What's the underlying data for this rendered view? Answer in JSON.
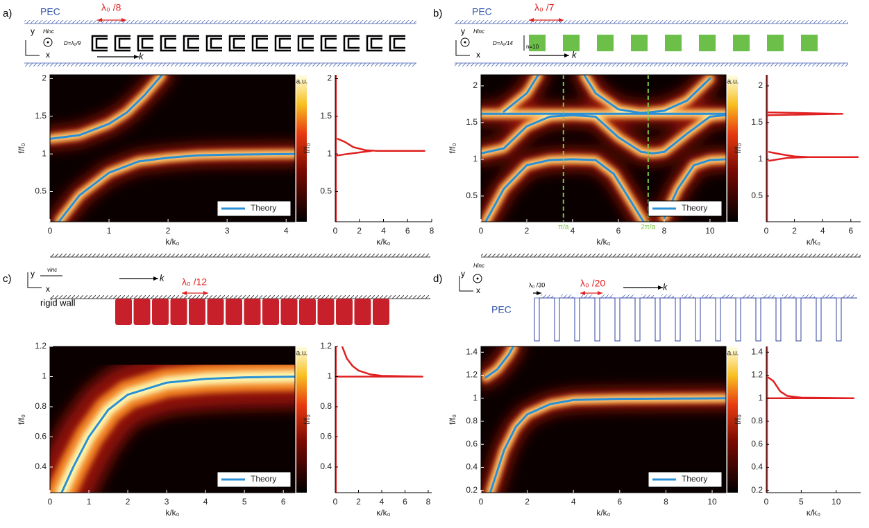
{
  "chart_data": [
    {
      "type": "line",
      "heatmap": true,
      "colorbar_label": "a.u.",
      "legend": "lower right",
      "xlabel": "k/k₀",
      "ylabel": "f/f₀",
      "xlim": [
        0,
        4.15
      ],
      "ylim": [
        0.1,
        2.05
      ],
      "xticks": [
        0,
        1,
        2,
        3,
        4
      ],
      "yticks": [
        0.5,
        1,
        1.5,
        2
      ],
      "annotations": [
        "a)",
        "PEC",
        "λ₀ /8",
        "Hinc",
        "D=λ₀/9",
        "y",
        "x",
        "k"
      ],
      "series": [
        {
          "name": "Theory",
          "color": "#2a8fd4",
          "x": [
            0.15,
            0.5,
            1,
            1.5,
            2,
            2.5,
            3,
            4.15,
            null,
            0,
            0.5,
            1,
            1.3,
            1.6,
            1.9
          ],
          "values": [
            0.1,
            0.45,
            0.75,
            0.9,
            0.95,
            0.98,
            0.99,
            1.0,
            null,
            1.2,
            1.25,
            1.4,
            1.55,
            1.78,
            2.05
          ]
        }
      ]
    },
    {
      "type": "line",
      "xlabel": "κ/k₀",
      "ylabel": "f/f₀",
      "xlim": [
        0,
        8
      ],
      "ylim": [
        0.1,
        2.05
      ],
      "xticks": [
        0,
        2,
        4,
        6,
        8
      ],
      "yticks": [
        0.5,
        1,
        1.5,
        2
      ],
      "series": [
        {
          "color": "#e02020",
          "x": [
            0.05,
            0.05,
            null,
            0.2,
            0.8,
            1.5,
            2.5,
            3.5,
            5,
            7.4,
            null,
            0.2,
            1,
            2,
            3
          ],
          "values": [
            0.1,
            2.05,
            null,
            1.2,
            1.16,
            1.09,
            1.05,
            1.04,
            1.04,
            1.04,
            null,
            0.98,
            1.0,
            1.02,
            1.04
          ]
        }
      ]
    },
    {
      "type": "line",
      "heatmap": true,
      "colorbar_label": "a.u.",
      "legend": "lower right",
      "xlabel": "k/k₀",
      "ylabel": "f/f₀",
      "xlim": [
        0,
        10.7
      ],
      "ylim": [
        0.15,
        2.15
      ],
      "xticks": [
        0,
        2,
        4,
        6,
        8,
        10
      ],
      "yticks": [
        0.5,
        1,
        1.5,
        2
      ],
      "vlines": [
        {
          "x": 3.6,
          "label": "π/a"
        },
        {
          "x": 7.3,
          "label": "2π/a"
        }
      ],
      "vline_color": "#7ac943",
      "annotations": [
        "b)",
        "PEC",
        "λ₀ /7",
        "Hinc",
        "D=λ₀/14",
        "n=10",
        "y",
        "x",
        "k"
      ],
      "series": [
        {
          "name": "Theory",
          "color": "#2a8fd4",
          "x": [
            0.2,
            1,
            2,
            3,
            4,
            5,
            5.8,
            6.6,
            7.1,
            null,
            8,
            8.6,
            9.3,
            10,
            10.7,
            null,
            0,
            1,
            2,
            3,
            4,
            5,
            6,
            7,
            7.5,
            8,
            9,
            10,
            10.7,
            null,
            0,
            10.7,
            null,
            1,
            2,
            2.5,
            null,
            4.5,
            5,
            6,
            7,
            8,
            9,
            10
          ],
          "values": [
            0.15,
            0.6,
            0.92,
            0.99,
            1.0,
            0.99,
            0.8,
            0.4,
            0.15,
            null,
            0.2,
            0.6,
            0.92,
            0.99,
            1.0,
            null,
            1.08,
            1.15,
            1.45,
            1.58,
            1.6,
            1.58,
            1.3,
            1.1,
            1.08,
            1.1,
            1.35,
            1.58,
            1.6,
            null,
            1.62,
            1.62,
            null,
            1.65,
            1.9,
            2.15,
            null,
            2.15,
            1.9,
            1.68,
            1.63,
            1.66,
            1.8,
            2.1
          ]
        }
      ]
    },
    {
      "type": "line",
      "xlabel": "κ/k₀",
      "ylabel": "f/f₀",
      "xlim": [
        0,
        6.7
      ],
      "ylim": [
        0.15,
        2.15
      ],
      "xticks": [
        0,
        2,
        4,
        6
      ],
      "yticks": [
        0.5,
        1,
        1.5,
        2
      ],
      "series": [
        {
          "color": "#e02020",
          "x": [
            0.05,
            0.05,
            null,
            0.1,
            5.4,
            null,
            0.1,
            5,
            null,
            0.2,
            1,
            2,
            3,
            6.5,
            null,
            0.2,
            1.5,
            3
          ],
          "values": [
            0.15,
            2.15,
            null,
            1.6,
            1.62,
            null,
            1.64,
            1.62,
            null,
            1.1,
            1.07,
            1.04,
            1.03,
            1.03,
            null,
            0.98,
            1.02,
            1.03
          ]
        }
      ]
    },
    {
      "type": "line",
      "heatmap": true,
      "wide_heat": true,
      "colorbar_label": "a.u.",
      "legend": "lower right",
      "xlabel": "k/k₀",
      "ylabel": "f/f₀",
      "xlim": [
        0,
        6.3
      ],
      "ylim": [
        0.23,
        1.2
      ],
      "xticks": [
        0,
        1,
        2,
        3,
        4,
        5,
        6
      ],
      "yticks": [
        0.4,
        0.6,
        0.8,
        1,
        1.2
      ],
      "annotations": [
        "c)",
        "vinc",
        "λ₀ /12",
        "rigid wall",
        "y",
        "x",
        "k"
      ],
      "series": [
        {
          "name": "Theory",
          "color": "#2a8fd4",
          "x": [
            0.3,
            0.6,
            1,
            1.5,
            2,
            3,
            4,
            5,
            6.3
          ],
          "values": [
            0.23,
            0.4,
            0.6,
            0.78,
            0.88,
            0.96,
            0.985,
            0.995,
            1.0
          ]
        }
      ]
    },
    {
      "type": "line",
      "xlabel": "κ/k₀",
      "ylabel": "f/f₀",
      "xlim": [
        0,
        8.3
      ],
      "ylim": [
        0.23,
        1.2
      ],
      "xticks": [
        0,
        2,
        4,
        6,
        8
      ],
      "yticks": [
        0.4,
        0.6,
        0.8,
        1,
        1.2
      ],
      "series": [
        {
          "color": "#e02020",
          "x": [
            0.05,
            0.05,
            null,
            0.6,
            1,
            1.5,
            2,
            3,
            4,
            7.5,
            null,
            0.2,
            2,
            7.5
          ],
          "values": [
            0.23,
            1.2,
            null,
            1.2,
            1.12,
            1.07,
            1.04,
            1.015,
            1.005,
            1.0,
            null,
            1.0,
            1.0,
            1.0
          ]
        }
      ]
    },
    {
      "type": "line",
      "heatmap": true,
      "colorbar_label": "a.u.",
      "legend": "lower right",
      "xlabel": "k/k₀",
      "ylabel": "f/f₀",
      "xlim": [
        0,
        10.6
      ],
      "ylim": [
        0.18,
        1.45
      ],
      "xticks": [
        0,
        2,
        4,
        6,
        8,
        10
      ],
      "yticks": [
        0.2,
        0.4,
        0.6,
        0.8,
        1,
        1.2,
        1.4
      ],
      "annotations": [
        "d)",
        "Hinc",
        "λ₀ /20",
        "λ₀ /30",
        "PEC",
        "y",
        "x",
        "k"
      ],
      "series": [
        {
          "name": "Theory",
          "color": "#2a8fd4",
          "x": [
            0.4,
            1,
            1.5,
            2,
            3,
            4,
            6,
            10.6,
            null,
            0.2,
            0.7,
            1.2,
            1.4
          ],
          "values": [
            0.18,
            0.55,
            0.75,
            0.86,
            0.95,
            0.985,
            0.995,
            1.0,
            null,
            1.18,
            1.25,
            1.38,
            1.45
          ]
        }
      ]
    },
    {
      "type": "line",
      "xlabel": "κ/k₀",
      "ylabel": "f/f₀",
      "xlim": [
        0,
        13.5
      ],
      "ylim": [
        0.18,
        1.45
      ],
      "xticks": [
        0,
        5,
        10
      ],
      "yticks": [
        0.2,
        0.4,
        0.6,
        0.8,
        1,
        1.2,
        1.4
      ],
      "series": [
        {
          "color": "#e02020",
          "x": [
            0.1,
            0.1,
            null,
            0.3,
            1,
            2,
            3,
            5,
            12.5,
            null,
            0.2,
            5,
            12.5
          ],
          "values": [
            0.18,
            1.45,
            null,
            1.18,
            1.15,
            1.06,
            1.02,
            1.005,
            1.0,
            null,
            1.0,
            1.0,
            1.0
          ]
        }
      ]
    }
  ]
}
